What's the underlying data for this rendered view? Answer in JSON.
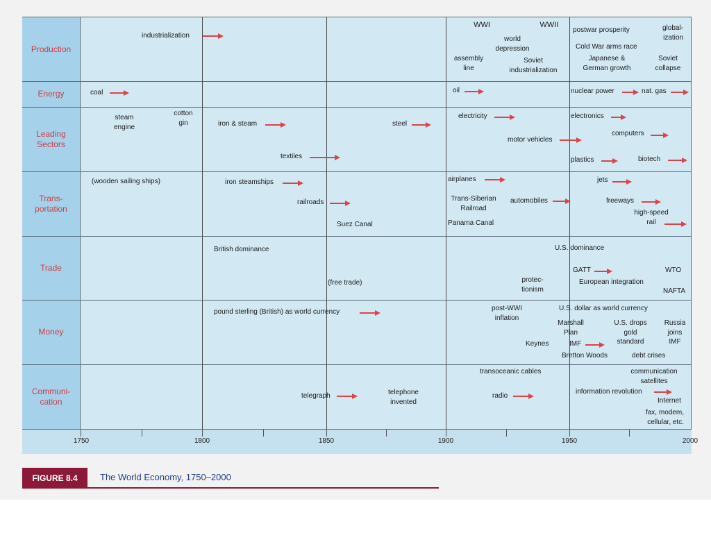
{
  "rows": [
    {
      "key": "production",
      "label": "Production"
    },
    {
      "key": "energy",
      "label": "Energy"
    },
    {
      "key": "leading",
      "label": "Leading\nSectors"
    },
    {
      "key": "transport",
      "label": "Trans-\nportation"
    },
    {
      "key": "trade",
      "label": "Trade"
    },
    {
      "key": "money",
      "label": "Money"
    },
    {
      "key": "comm",
      "label": "Communi-\ncation"
    }
  ],
  "axis": {
    "ticks": [
      "1750",
      "1800",
      "1850",
      "1900",
      "1950",
      "2000"
    ]
  },
  "production": {
    "industrialization": "industrialization",
    "wwi": "WWI",
    "wwii": "WWII",
    "world_depression": "world\ndepression",
    "assembly_line": "assembly\nline",
    "soviet_industrialization": "Soviet\nindustrialization",
    "postwar_prosperity": "postwar prosperity",
    "globalization": "global-\nization",
    "cold_war": "Cold War arms race",
    "japanese_german": "Japanese &\nGerman growth",
    "soviet_collapse": "Soviet\ncollapse"
  },
  "energy": {
    "coal": "coal",
    "oil": "oil",
    "nuclear": "nuclear power",
    "natgas": "nat. gas"
  },
  "leading": {
    "steam_engine": "steam\nengine",
    "cotton_gin": "cotton\ngin",
    "iron_steam": "iron & steam",
    "textiles": "textiles",
    "steel": "steel",
    "electricity": "electricity",
    "motor_vehicles": "motor vehicles",
    "electronics": "electronics",
    "computers": "computers",
    "plastics": "plastics",
    "biotech": "biotech"
  },
  "transport": {
    "wooden_ships": "(wooden sailing ships)",
    "iron_steamships": "iron steamships",
    "railroads": "railroads",
    "suez": "Suez Canal",
    "airplanes": "airplanes",
    "trans_siberian": "Trans-Siberian\nRailroad",
    "panama": "Panama Canal",
    "automobiles": "automobiles",
    "jets": "jets",
    "freeways": "freeways",
    "high_speed_rail": "high-speed\nrail"
  },
  "trade": {
    "british_dominance": "British dominance",
    "free_trade": "(free trade)",
    "protectionism": "protec-\ntionism",
    "us_dominance": "U.S. dominance",
    "gatt": "GATT",
    "european_integration": "European integration",
    "wto": "WTO",
    "nafta": "NAFTA"
  },
  "money": {
    "pound_sterling": "pound sterling (British) as world currency",
    "postwwi_inflation": "post-WWI\ninflation",
    "us_dollar": "U.S. dollar as world currency",
    "marshall_plan": "Marshall\nPlan",
    "us_drops_gold": "U.S. drops\ngold\nstandard",
    "russia_joins": "Russia\njoins\nIMF",
    "keynes": "Keynes",
    "imf": "IMF",
    "bretton_woods": "Bretton Woods",
    "debt_crises": "debt crises"
  },
  "comm": {
    "transoceanic": "transoceanic cables",
    "telegraph": "telegraph",
    "telephone": "telephone\ninvented",
    "radio": "radio",
    "satellites": "communication\nsatellites",
    "info_revolution": "information revolution",
    "internet": "Internet",
    "fax": "fax, modem,\ncellular, etc."
  },
  "caption": {
    "figure": "FIGURE 8.4",
    "title": "The World Economy, 1750–2000"
  },
  "colors": {
    "row_label": "#c8404a",
    "arrow": "#d9454a",
    "cell_bg": "#d2e8f3",
    "label_bg": "#a6d1ea",
    "caption_box": "#8b1a3a",
    "caption_text": "#1f3e8a"
  }
}
